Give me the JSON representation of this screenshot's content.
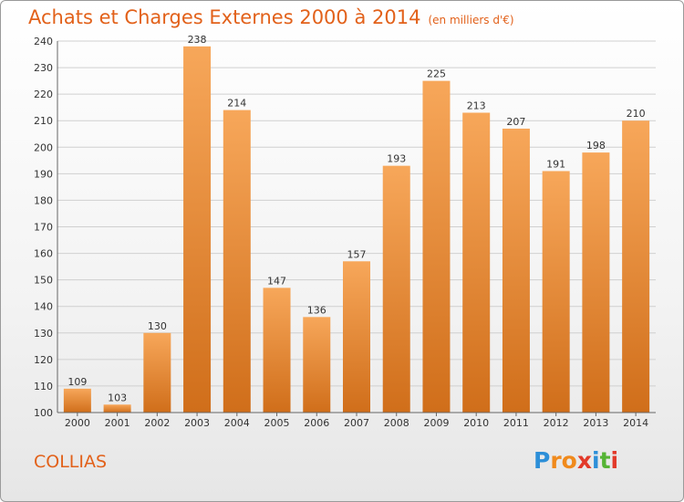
{
  "title": "Achats et Charges Externes 2000 à 2014",
  "title_unit": "(en milliers d'€)",
  "location": "COLLIAS",
  "logo": {
    "text": "Proxiti",
    "colors": [
      "#2d8fd8",
      "#f08a1c",
      "#f08a1c",
      "#e23a2a",
      "#2d8fd8",
      "#55b435",
      "#e23a2a"
    ]
  },
  "colors": {
    "title": "#e2611a",
    "bar_top": "#f7a75a",
    "bar_bottom": "#d06e1a",
    "grid": "#d0d0d0"
  },
  "chart_data": {
    "type": "bar",
    "categories": [
      "2000",
      "2001",
      "2002",
      "2003",
      "2004",
      "2005",
      "2006",
      "2007",
      "2008",
      "2009",
      "2010",
      "2011",
      "2012",
      "2013",
      "2014"
    ],
    "values": [
      109,
      103,
      130,
      238,
      214,
      147,
      136,
      157,
      193,
      225,
      213,
      207,
      191,
      198,
      210
    ],
    "ylim": [
      100,
      240
    ],
    "yticks": [
      100,
      110,
      120,
      130,
      140,
      150,
      160,
      170,
      180,
      190,
      200,
      210,
      220,
      230,
      240
    ],
    "grid": true,
    "xlabel": "",
    "ylabel": ""
  }
}
